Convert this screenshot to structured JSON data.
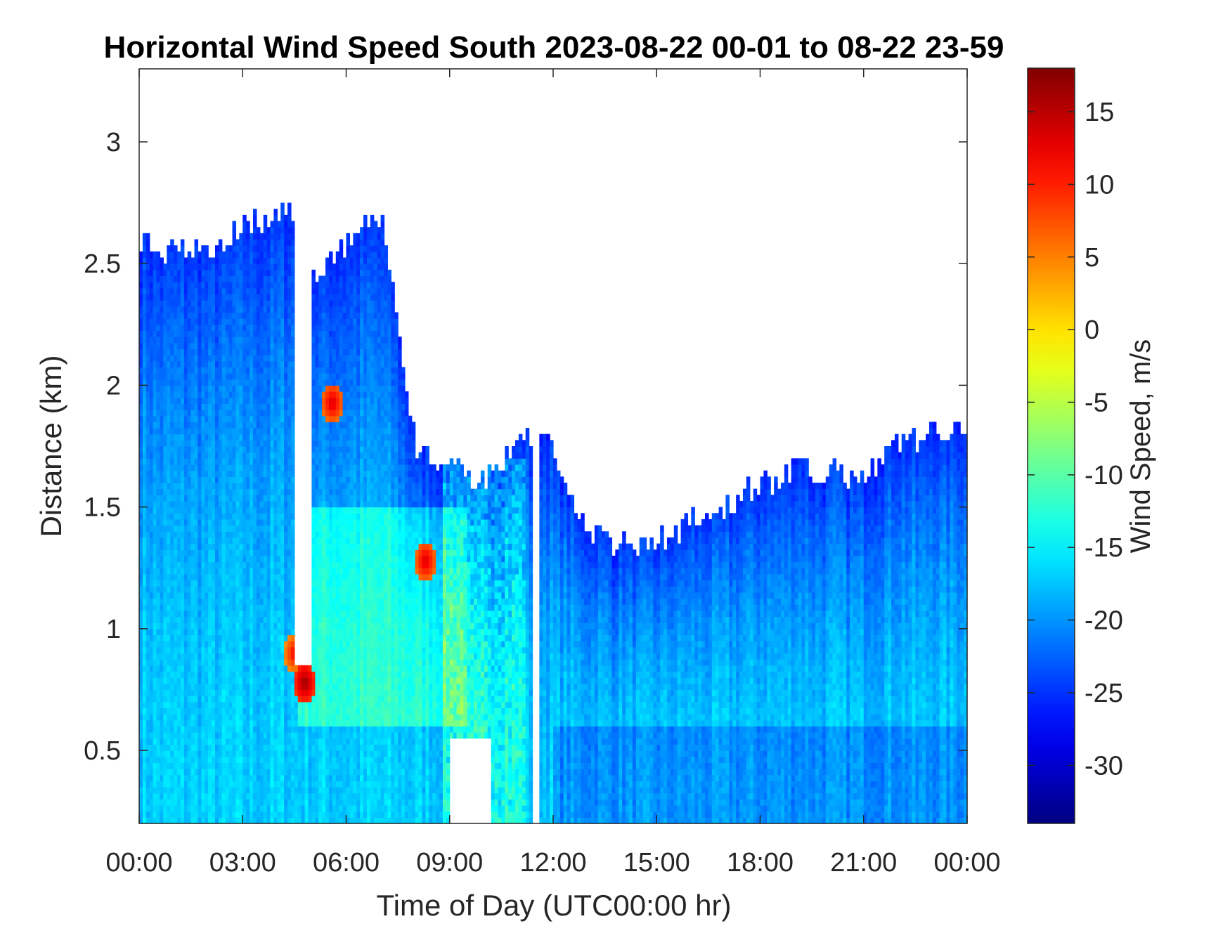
{
  "chart_data": {
    "type": "heatmap",
    "title": "Horizontal Wind Speed South 2023-08-22 00-01 to 08-22 23-59",
    "xlabel": "Time of Day (UTC00:00 hr)",
    "ylabel": "Distance (km)",
    "xlim_hours": [
      0,
      24
    ],
    "ylim_km": [
      0.2,
      3.3
    ],
    "xticks": [
      "00:00",
      "03:00",
      "06:00",
      "09:00",
      "12:00",
      "15:00",
      "18:00",
      "21:00",
      "00:00"
    ],
    "yticks": [
      0.5,
      1,
      1.5,
      2,
      2.5,
      3
    ],
    "colorbar": {
      "label": "Wind Speed, m/s",
      "range": [
        -34,
        18
      ],
      "ticks": [
        15,
        10,
        5,
        0,
        -5,
        -10,
        -15,
        -20,
        -25,
        -30
      ],
      "colormap": "jet"
    },
    "grid": false,
    "features": {
      "top_of_coverage_km": [
        [
          0,
          2.6
        ],
        [
          1,
          2.55
        ],
        [
          2,
          2.55
        ],
        [
          3,
          2.65
        ],
        [
          4,
          2.7
        ],
        [
          4.5,
          2.7
        ],
        [
          5,
          2.45
        ],
        [
          6,
          2.6
        ],
        [
          7,
          2.7
        ],
        [
          8,
          1.75
        ],
        [
          9,
          1.65
        ],
        [
          10,
          1.6
        ],
        [
          11,
          1.8
        ],
        [
          12,
          1.75
        ],
        [
          13,
          1.4
        ],
        [
          14,
          1.35
        ],
        [
          15,
          1.35
        ],
        [
          16,
          1.45
        ],
        [
          17,
          1.5
        ],
        [
          18,
          1.6
        ],
        [
          19,
          1.65
        ],
        [
          20,
          1.65
        ],
        [
          21,
          1.6
        ],
        [
          22,
          1.75
        ],
        [
          23,
          1.8
        ],
        [
          24,
          1.8
        ]
      ],
      "data_gaps": [
        {
          "start_hr": 4.5,
          "end_hr": 5.0,
          "from_km": 0.85,
          "to_km": 3.3
        },
        {
          "start_hr": 11.4,
          "end_hr": 11.55,
          "from_km": 0.2,
          "to_km": 1.8
        },
        {
          "start_hr": 9.0,
          "end_hr": 10.2,
          "from_km": 0.2,
          "to_km": 0.55
        }
      ],
      "high_speed_patches": [
        {
          "hr": 4.8,
          "km": 0.78,
          "value": 17
        },
        {
          "hr": 4.5,
          "km": 0.9,
          "value": 12
        },
        {
          "hr": 5.6,
          "km": 1.93,
          "value": 14
        },
        {
          "hr": 8.3,
          "km": 1.28,
          "value": 14
        }
      ]
    }
  }
}
